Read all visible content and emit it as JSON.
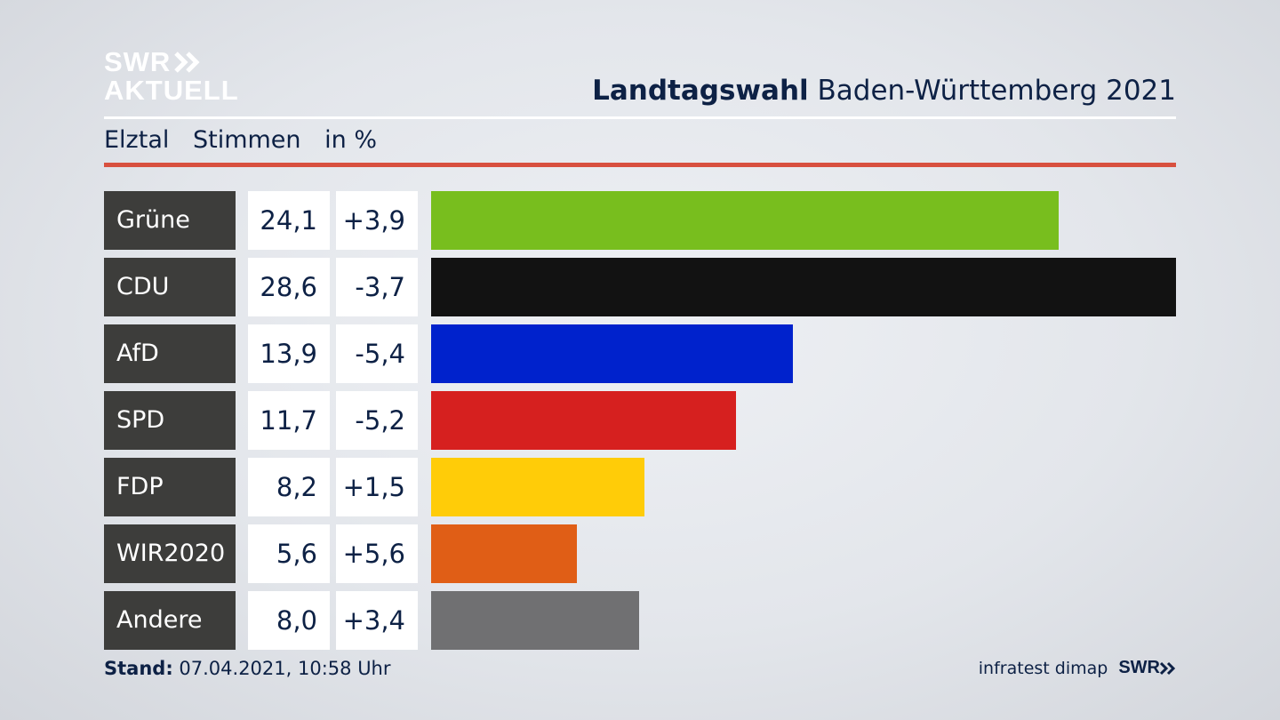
{
  "logo": {
    "line1": "SWR",
    "line2": "AKTUELL"
  },
  "header": {
    "title_bold": "Landtagswahl",
    "title_rest": "Baden-Württemberg 2021"
  },
  "subheader": {
    "region": "Elztal",
    "measure": "Stimmen",
    "unit": "in %"
  },
  "footer": {
    "stand_label": "Stand:",
    "stand_value": "07.04.2021, 10:58 Uhr",
    "credit": "infratest dimap",
    "brand": "SWR"
  },
  "colors": {
    "accent_rule": "#d8503f",
    "label_bg": "#3d3d3b",
    "text": "#0d2145"
  },
  "chart_data": {
    "type": "bar",
    "orientation": "horizontal",
    "unit": "%",
    "categories": [
      "Grüne",
      "CDU",
      "AfD",
      "SPD",
      "FDP",
      "WIR2020",
      "Andere"
    ],
    "values": [
      24.1,
      28.6,
      13.9,
      11.7,
      8.2,
      5.6,
      8.0
    ],
    "value_labels": [
      "24,1",
      "28,6",
      "13,9",
      "11,7",
      "8,2",
      "5,6",
      "8,0"
    ],
    "diff_labels": [
      "+3,9",
      "-3,7",
      "-5,4",
      "-5,2",
      "+1,5",
      "+5,6",
      "+3,4"
    ],
    "colors": [
      "#78be1e",
      "#121212",
      "#0022cc",
      "#d6201f",
      "#ffcc08",
      "#e05e16",
      "#707072"
    ],
    "xlim": [
      0,
      28.6
    ],
    "grid": false
  }
}
